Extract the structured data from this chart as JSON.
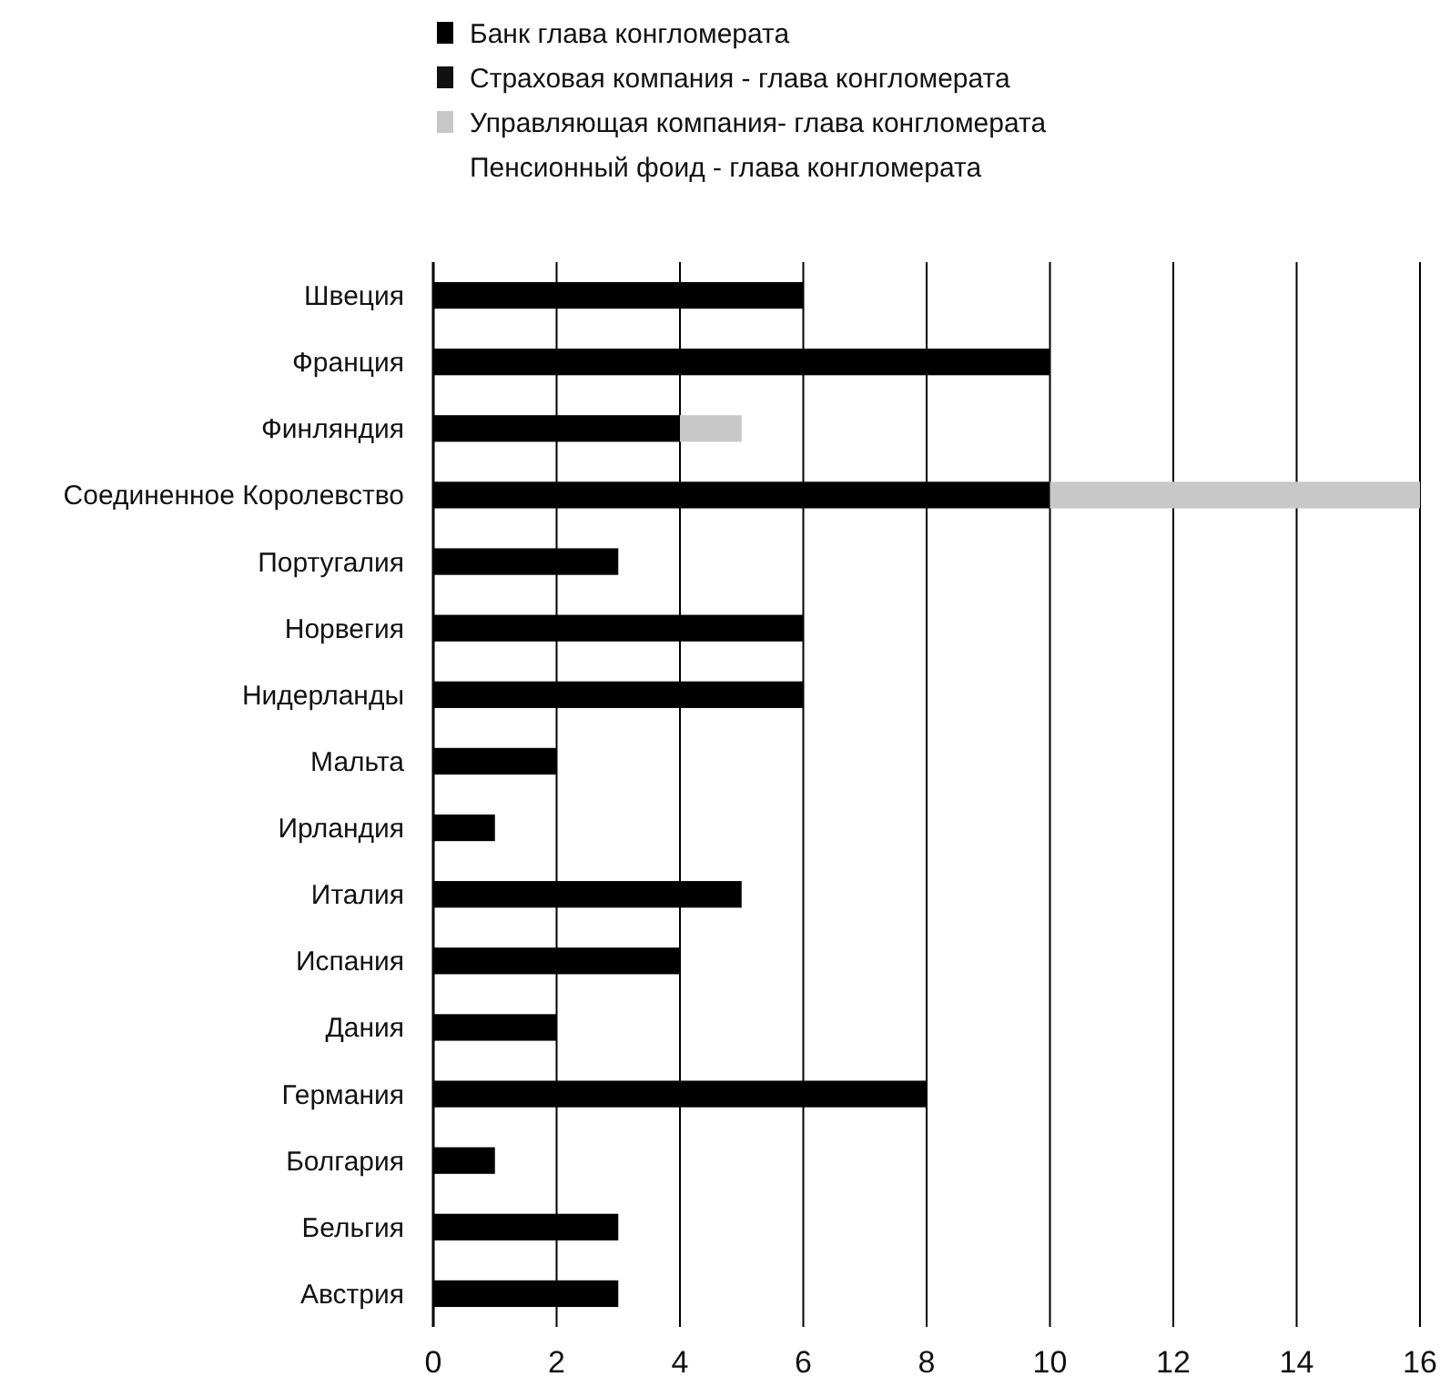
{
  "chart_data": {
    "type": "bar",
    "orientation": "horizontal",
    "stacked": true,
    "categories": [
      "Швеция",
      "Франция",
      "Финляндия",
      "Соединенное Королевство",
      "Португалия",
      "Норвегия",
      "Нидерланды",
      "Мальта",
      "Ирландия",
      "Италия",
      "Испания",
      "Дания",
      "Германия",
      "Болгария",
      "Бельгия",
      "Австрия"
    ],
    "series": [
      {
        "name": "Банк глава конгломерата",
        "color": "#000000",
        "values": [
          6,
          10,
          4,
          10,
          3,
          6,
          6,
          2,
          1,
          5,
          4,
          2,
          8,
          1,
          3,
          3
        ]
      },
      {
        "name": "Страховая компания - глава конгломерата",
        "color": "#111111",
        "values": [
          0,
          0,
          0,
          0,
          0,
          0,
          0,
          0,
          0,
          0,
          0,
          0,
          0,
          0,
          0,
          0
        ]
      },
      {
        "name": "Управляющая компания- глава конгломерата",
        "color": "#c8c8c8",
        "values": [
          0,
          0,
          1,
          6,
          0,
          0,
          0,
          0,
          0,
          0,
          0,
          0,
          0,
          0,
          0,
          0
        ]
      },
      {
        "name": "Пенсионный фоид - глава конгломерата",
        "values": [
          0,
          0,
          0,
          0,
          0,
          0,
          0,
          0,
          0,
          0,
          0,
          0,
          0,
          0,
          0,
          0
        ]
      }
    ],
    "xlim": [
      0,
      16
    ],
    "xticks": [
      0,
      2,
      4,
      6,
      8,
      10,
      12,
      14,
      16
    ],
    "grid": "x",
    "legend": "top"
  }
}
